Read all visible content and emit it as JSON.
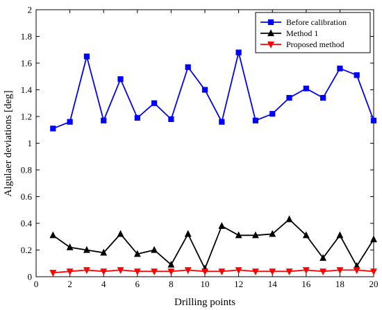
{
  "chart_data": {
    "type": "line",
    "xlabel": "Drilling points",
    "ylabel": "Algulaer deviations [deg]",
    "xlim": [
      0,
      20
    ],
    "ylim": [
      0,
      2
    ],
    "x_ticks": [
      "0",
      "2",
      "4",
      "6",
      "8",
      "10",
      "12",
      "14",
      "16",
      "18",
      "20"
    ],
    "y_ticks": [
      "0",
      "0.2",
      "0.4",
      "0.6",
      "0.8",
      "1",
      "1.2",
      "1.4",
      "1.6",
      "1.8",
      "2"
    ],
    "grid": false,
    "legend_position": "top-right",
    "x": [
      1,
      2,
      3,
      4,
      5,
      6,
      7,
      8,
      9,
      10,
      11,
      12,
      13,
      14,
      15,
      16,
      17,
      18,
      19,
      20
    ],
    "series": [
      {
        "name": "Before calibration",
        "color": "#0000ff",
        "marker": "square",
        "values": [
          1.11,
          1.16,
          1.65,
          1.17,
          1.48,
          1.19,
          1.3,
          1.18,
          1.57,
          1.4,
          1.16,
          1.68,
          1.17,
          1.22,
          1.34,
          1.41,
          1.34,
          1.56,
          1.51,
          1.17
        ]
      },
      {
        "name": "Method 1",
        "color": "#000000",
        "marker": "triangle-up",
        "values": [
          0.31,
          0.22,
          0.2,
          0.18,
          0.32,
          0.17,
          0.2,
          0.09,
          0.32,
          0.06,
          0.38,
          0.31,
          0.31,
          0.32,
          0.43,
          0.31,
          0.14,
          0.31,
          0.08,
          0.28
        ]
      },
      {
        "name": "Proposed method",
        "color": "#ff0000",
        "marker": "triangle-down",
        "values": [
          0.03,
          0.04,
          0.05,
          0.04,
          0.05,
          0.04,
          0.04,
          0.04,
          0.05,
          0.04,
          0.04,
          0.05,
          0.04,
          0.04,
          0.04,
          0.05,
          0.04,
          0.05,
          0.05,
          0.04
        ]
      }
    ]
  }
}
